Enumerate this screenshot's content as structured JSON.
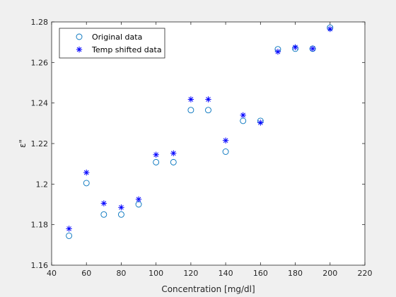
{
  "chart_data": {
    "type": "scatter",
    "title": "",
    "xlabel": "Concentration [mg/dl]",
    "ylabel": "ε\"",
    "xlim": [
      40,
      220
    ],
    "ylim": [
      1.16,
      1.28
    ],
    "xticks": [
      40,
      60,
      80,
      100,
      120,
      140,
      160,
      180,
      200,
      220
    ],
    "xtick_labels": [
      "40",
      "60",
      "80",
      "100",
      "120",
      "140",
      "160",
      "180",
      "200",
      "220"
    ],
    "yticks": [
      1.16,
      1.18,
      1.2,
      1.22,
      1.24,
      1.26,
      1.28
    ],
    "ytick_labels": [
      "1.16",
      "1.18",
      "1.2",
      "1.22",
      "1.24",
      "1.26",
      "1.28"
    ],
    "grid": false,
    "legend_position": "top-left",
    "colors": {
      "original": "#0072bd",
      "shifted": "#0000ff",
      "background": "#f0f0f0",
      "axes": "#ffffff"
    },
    "series": [
      {
        "name": "Original data",
        "marker": "circle",
        "x": [
          50,
          60,
          70,
          80,
          90,
          100,
          110,
          120,
          130,
          140,
          150,
          160,
          170,
          180,
          190,
          200
        ],
        "y": [
          1.1745,
          1.2005,
          1.185,
          1.185,
          1.19,
          1.2108,
          1.2108,
          1.2365,
          1.2365,
          1.216,
          1.2312,
          1.2312,
          1.2665,
          1.2668,
          1.2668,
          1.2772
        ]
      },
      {
        "name": "Temp shifted data",
        "marker": "asterisk",
        "x": [
          50,
          60,
          70,
          80,
          90,
          100,
          110,
          120,
          130,
          140,
          150,
          160,
          170,
          180,
          190,
          200
        ],
        "y": [
          1.178,
          1.2057,
          1.1905,
          1.1885,
          1.1925,
          1.2145,
          1.2152,
          1.2418,
          1.2418,
          1.2215,
          1.234,
          1.2303,
          1.2653,
          1.2675,
          1.2668,
          1.2765
        ]
      }
    ]
  }
}
